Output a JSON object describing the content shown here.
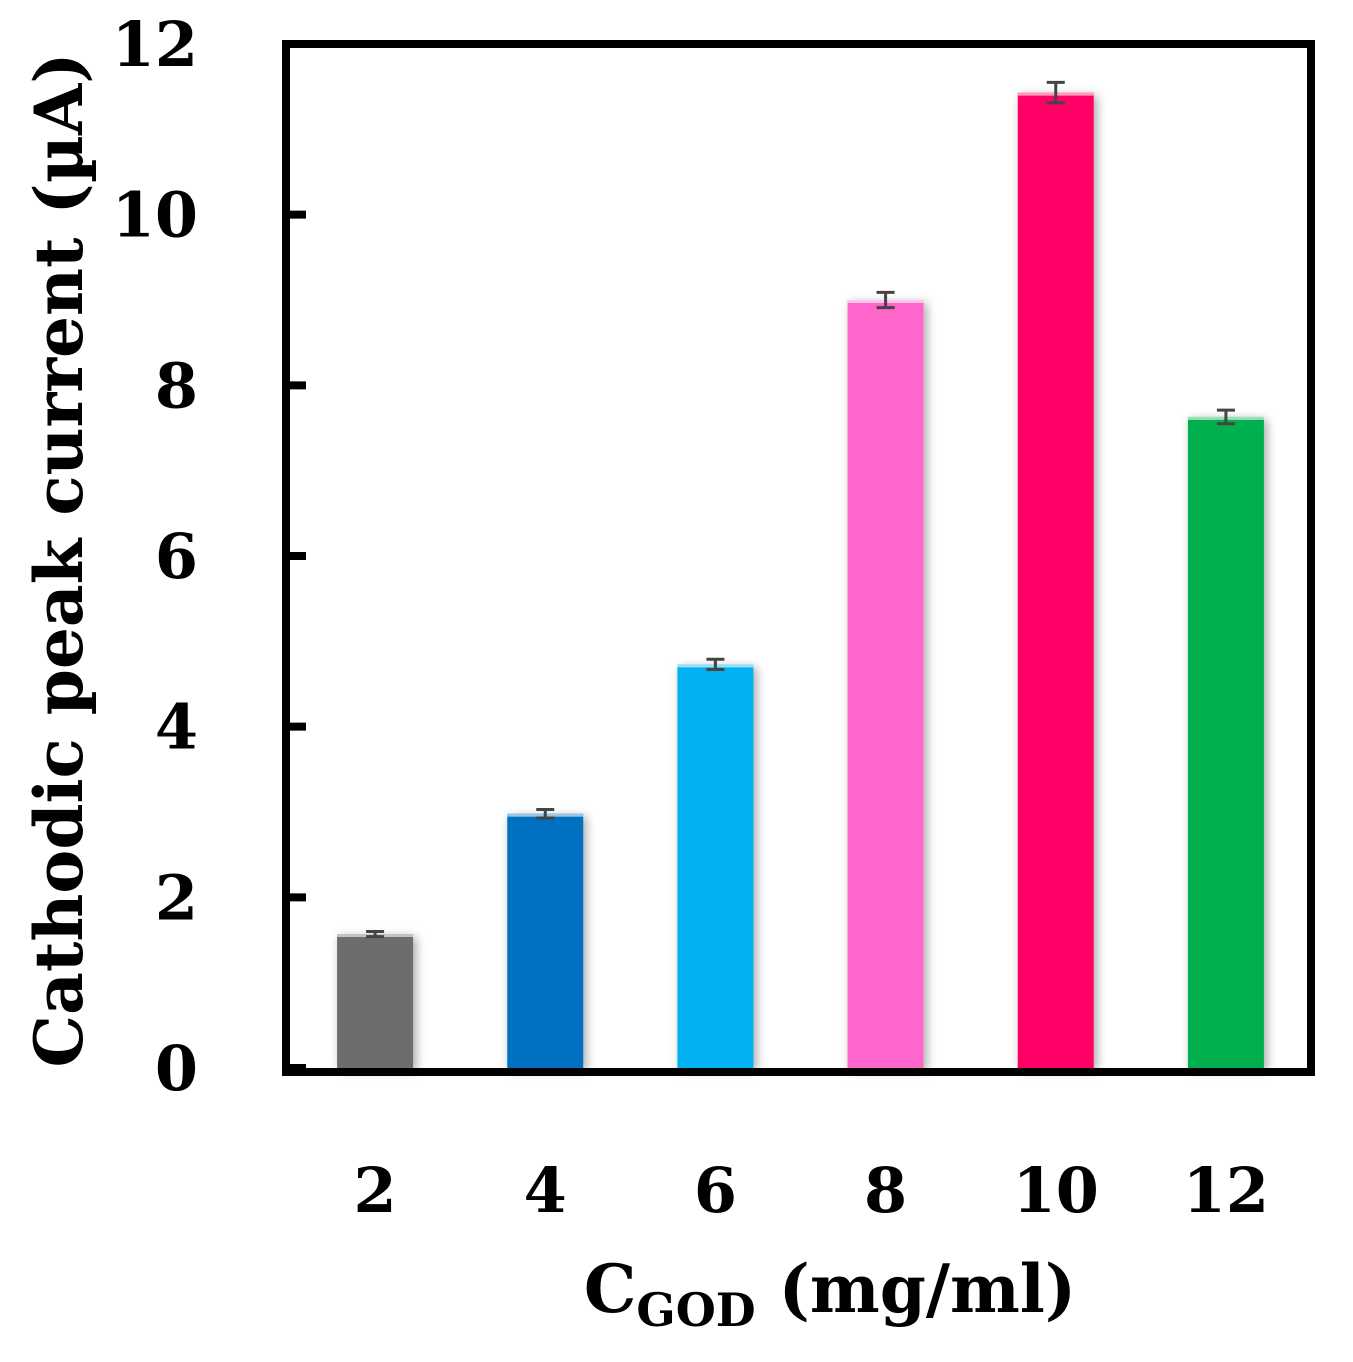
{
  "chart_data": {
    "type": "bar",
    "title": "",
    "categories": [
      "2",
      "4",
      "6",
      "8",
      "10",
      "12"
    ],
    "values": [
      1.57,
      2.98,
      4.73,
      9.0,
      11.43,
      7.63
    ],
    "errors": [
      0.03,
      0.05,
      0.06,
      0.09,
      0.12,
      0.08
    ],
    "colors": [
      "#6d6d6d",
      "#0070c0",
      "#00b0f0",
      "#ff66cc",
      "#ff0066",
      "#00b050"
    ],
    "ylim": [
      0,
      12
    ],
    "yticks": [
      "0",
      "2",
      "4",
      "6",
      "8",
      "10",
      "12"
    ],
    "ylabel": "Cathodic peak current (µA)",
    "xlabel": {
      "main": "C",
      "subscript": "GOD",
      "rest": " (mg/ml)"
    },
    "grid": false,
    "legend": "none"
  }
}
